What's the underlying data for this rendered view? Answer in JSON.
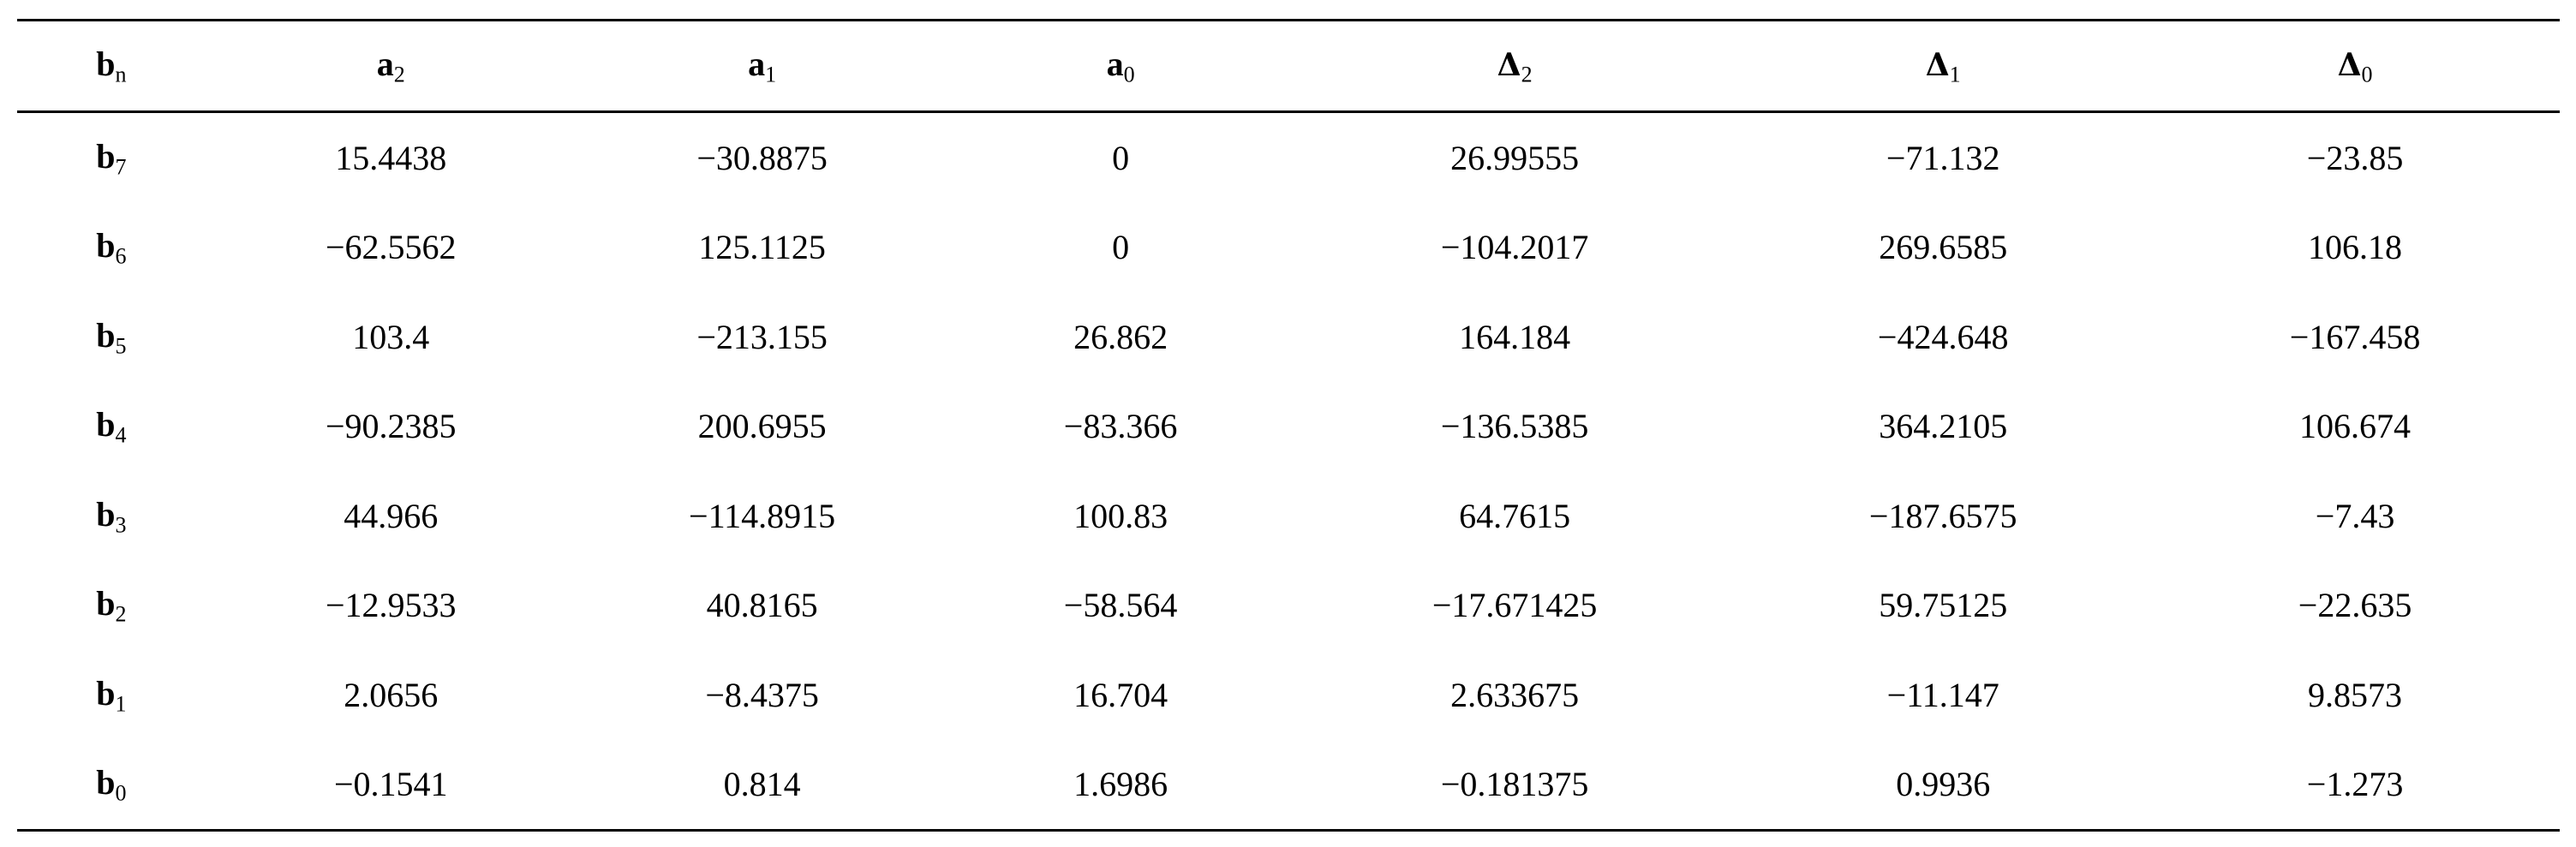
{
  "table": {
    "columns": [
      {
        "base": "b",
        "sub": "n",
        "symbol": false
      },
      {
        "base": "a",
        "sub": "2",
        "symbol": false
      },
      {
        "base": "a",
        "sub": "1",
        "symbol": false
      },
      {
        "base": "a",
        "sub": "0",
        "symbol": false
      },
      {
        "base": "Δ",
        "sub": "2",
        "symbol": true
      },
      {
        "base": "Δ",
        "sub": "1",
        "symbol": true
      },
      {
        "base": "Δ",
        "sub": "0",
        "symbol": true
      }
    ],
    "rows": [
      {
        "label_base": "b",
        "label_sub": "7",
        "values": [
          "15.4438",
          "−30.8875",
          "0",
          "26.99555",
          "−71.132",
          "−23.85"
        ]
      },
      {
        "label_base": "b",
        "label_sub": "6",
        "values": [
          "−62.5562",
          "125.1125",
          "0",
          "−104.2017",
          "269.6585",
          "106.18"
        ]
      },
      {
        "label_base": "b",
        "label_sub": "5",
        "values": [
          "103.4",
          "−213.155",
          "26.862",
          "164.184",
          "−424.648",
          "−167.458"
        ]
      },
      {
        "label_base": "b",
        "label_sub": "4",
        "values": [
          "−90.2385",
          "200.6955",
          "−83.366",
          "−136.5385",
          "364.2105",
          "106.674"
        ]
      },
      {
        "label_base": "b",
        "label_sub": "3",
        "values": [
          "44.966",
          "−114.8915",
          "100.83",
          "64.7615",
          "−187.6575",
          "−7.43"
        ]
      },
      {
        "label_base": "b",
        "label_sub": "2",
        "values": [
          "−12.9533",
          "40.8165",
          "−58.564",
          "−17.671425",
          "59.75125",
          "−22.635"
        ]
      },
      {
        "label_base": "b",
        "label_sub": "1",
        "values": [
          "2.0656",
          "−8.4375",
          "16.704",
          "2.633675",
          "−11.147",
          "9.8573"
        ]
      },
      {
        "label_base": "b",
        "label_sub": "0",
        "values": [
          "−0.1541",
          "0.814",
          "1.6986",
          "−0.181375",
          "0.9936",
          "−1.273"
        ]
      }
    ]
  }
}
